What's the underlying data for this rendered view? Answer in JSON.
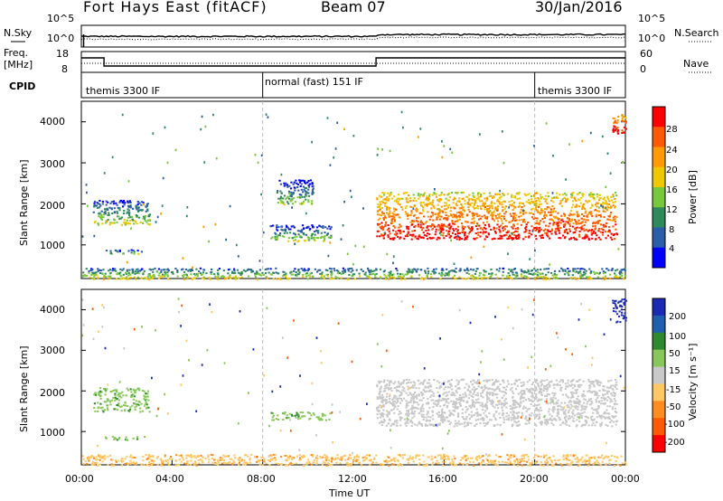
{
  "header": {
    "station": "Fort Hays East (fitACF)",
    "beam": "Beam 07",
    "date": "30/Jan/2016"
  },
  "noise_panel": {
    "left_label": "N.Sky",
    "right_label": "N.Search",
    "left_ticks": [
      "10^5",
      "10^0"
    ],
    "right_ticks": [
      "10^5",
      "10^0"
    ]
  },
  "freq_panel": {
    "left_label_1": "Freq.",
    "left_label_2": "[MHz]",
    "right_label": "Nave",
    "left_ticks": [
      "18",
      "8"
    ],
    "right_ticks": [
      "60",
      "0"
    ]
  },
  "cpid_panel": {
    "label": "CPID",
    "segments": [
      "themis 3300 IF",
      "normal (fast) 151 IF",
      "themis 3300 IF"
    ]
  },
  "power_panel": {
    "ylabel": "Slant Range [km]",
    "yticks": [
      "4000",
      "3000",
      "2000",
      "1000"
    ],
    "colorbar_label": "Power [dB]",
    "colorbar_ticks": [
      "28",
      "24",
      "20",
      "16",
      "12",
      "8",
      "4"
    ],
    "colors": [
      "#ff0000",
      "#ff5a00",
      "#ff9a00",
      "#f0c800",
      "#78c83c",
      "#2e8a5a",
      "#2a5ea8",
      "#0000ff"
    ]
  },
  "velocity_panel": {
    "ylabel": "Slant Range [km]",
    "yticks": [
      "4000",
      "3000",
      "2000",
      "1000"
    ],
    "colorbar_label": "Velocity [m s⁻¹]",
    "colorbar_ticks": [
      "200",
      "100",
      "50",
      "15",
      "-15",
      "-50",
      "-100",
      "-200"
    ],
    "colors": [
      "#1a2ab4",
      "#1f5fb0",
      "#2d8a2d",
      "#88c85a",
      "#c8c8c8",
      "#ffc864",
      "#ff8c1e",
      "#ff5a00",
      "#ff0000"
    ]
  },
  "xaxis": {
    "ticks": [
      "00:00",
      "04:00",
      "08:00",
      "12:00",
      "16:00",
      "20:00",
      "00:00"
    ],
    "label": "Time UT"
  },
  "chart_data": {
    "type": "heatmap",
    "x_range_hours": [
      0,
      24
    ],
    "y_range_km": [
      180,
      4500
    ],
    "mode_changes_hours": [
      8,
      20
    ],
    "power_echoes": [
      {
        "t0": 0.5,
        "t1": 3.0,
        "r0": 1500,
        "r1": 2100,
        "dB": 8
      },
      {
        "t0": 1.0,
        "t1": 2.8,
        "r0": 800,
        "r1": 900,
        "dB": 6
      },
      {
        "t0": 8.3,
        "t1": 11.0,
        "r0": 1100,
        "r1": 1500,
        "dB": 7
      },
      {
        "t0": 8.6,
        "t1": 10.2,
        "r0": 2000,
        "r1": 2600,
        "dB": 6
      },
      {
        "t0": 13.0,
        "t1": 23.6,
        "r0": 1150,
        "r1": 2300,
        "dB": 22
      },
      {
        "t0": 23.4,
        "t1": 24.0,
        "r0": 3700,
        "r1": 4200,
        "dB": 24
      },
      {
        "t0": 0.0,
        "t1": 24.0,
        "r0": 180,
        "r1": 450,
        "dB": 10
      }
    ],
    "velocity_echoes": [
      {
        "t0": 0.5,
        "t1": 3.0,
        "r0": 1500,
        "r1": 2100,
        "vel": 40
      },
      {
        "t0": 1.0,
        "t1": 2.8,
        "r0": 800,
        "r1": 900,
        "vel": 40
      },
      {
        "t0": 8.3,
        "t1": 11.0,
        "r0": 1300,
        "r1": 1500,
        "vel": 40
      },
      {
        "t0": 13.0,
        "t1": 23.6,
        "r0": 1150,
        "r1": 2300,
        "vel": 0
      },
      {
        "t0": 23.4,
        "t1": 24.0,
        "r0": 3700,
        "r1": 4300,
        "vel": 220
      },
      {
        "t0": 0.0,
        "t1": 24.0,
        "r0": 180,
        "r1": 450,
        "vel": -40
      }
    ]
  }
}
